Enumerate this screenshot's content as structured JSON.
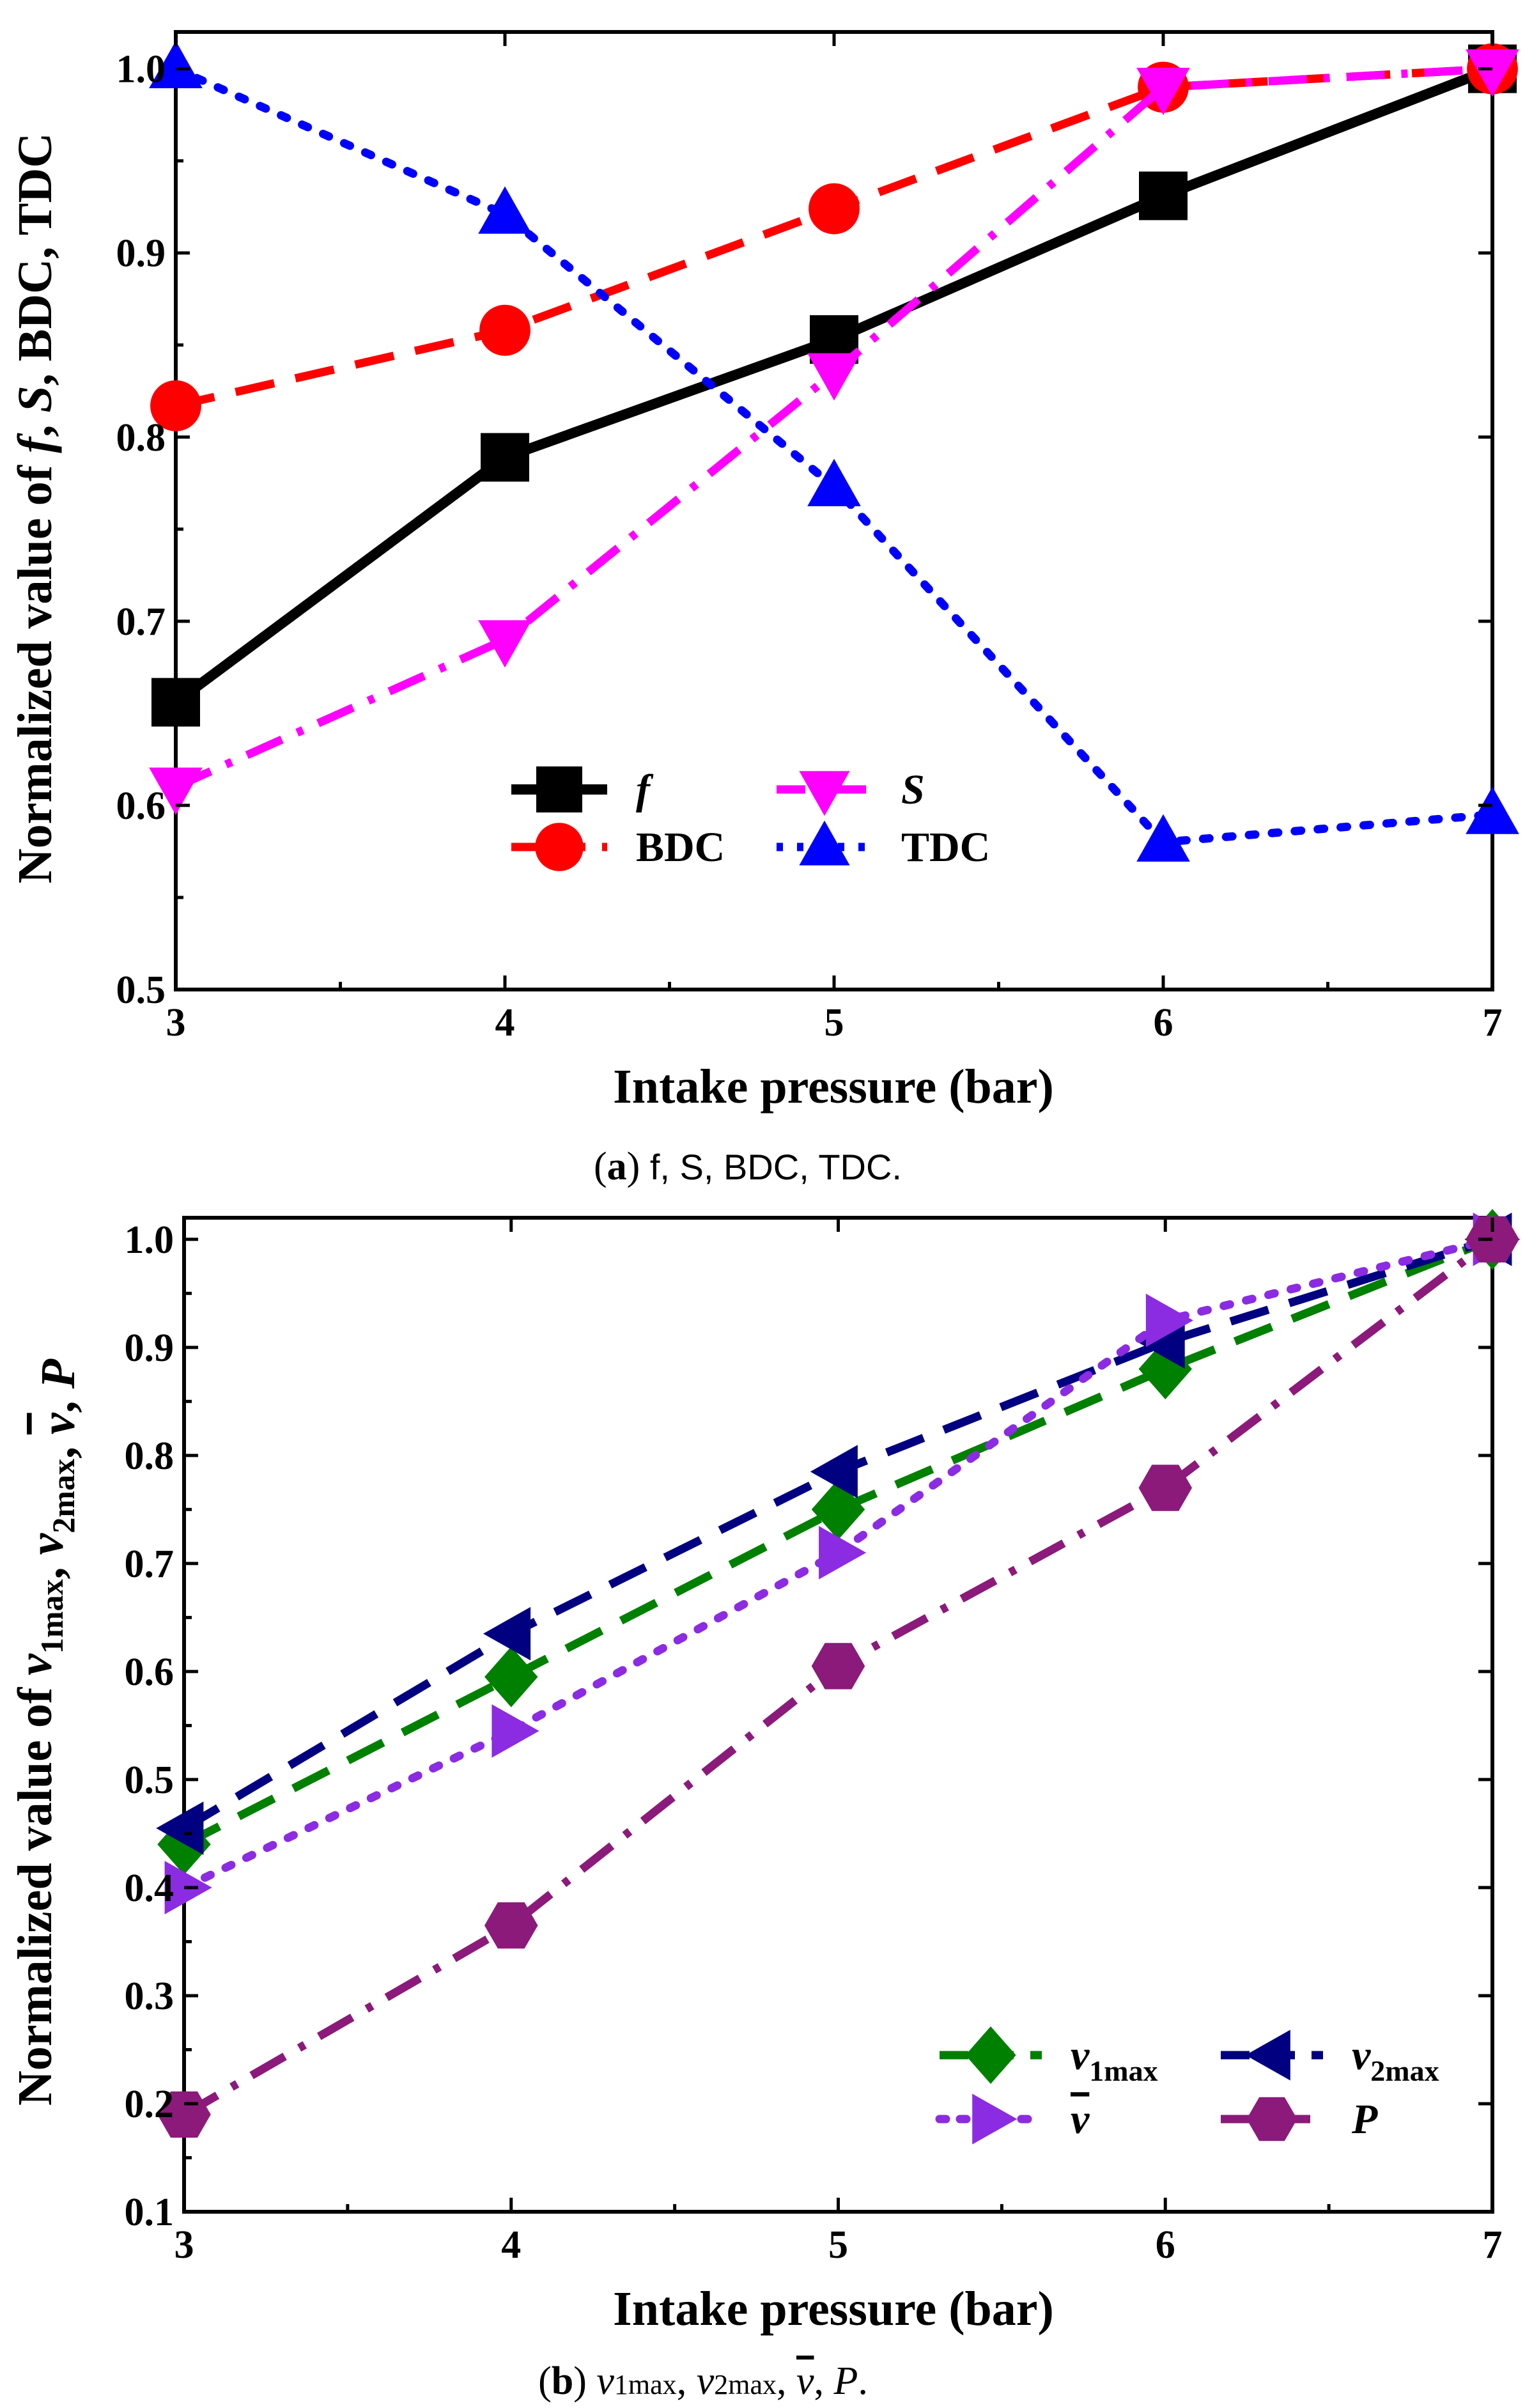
{
  "chart_data": [
    {
      "type": "line",
      "panel": "a",
      "caption": {
        "label": "a",
        "text": "f, S, BDC, TDC."
      },
      "xlabel": "Intake pressure (bar)",
      "ylabel": {
        "prefix": "Normalized value of ",
        "parts": [
          "f",
          ", ",
          "S",
          ", BDC, TDC"
        ]
      },
      "x": [
        3,
        4,
        5,
        6,
        7
      ],
      "xlim": [
        3,
        7
      ],
      "ylim": [
        0.5,
        1.02
      ],
      "xticks": [
        3,
        4,
        5,
        6,
        7
      ],
      "xtick_labels": [
        "3",
        "4",
        "5",
        "6",
        "7"
      ],
      "yticks": [
        0.5,
        0.6,
        0.7,
        0.8,
        0.9,
        1.0
      ],
      "ytick_labels": [
        "0.5",
        "0.6",
        "0.7",
        "0.8",
        "0.9",
        "1.0"
      ],
      "legend_position": "bottom-center",
      "series": [
        {
          "name": "f",
          "italic": true,
          "values": [
            0.656,
            0.789,
            0.853,
            0.931,
            1.0
          ],
          "color": "#000000",
          "marker": "square",
          "line": "solid"
        },
        {
          "name": "BDC",
          "italic": false,
          "values": [
            0.817,
            0.858,
            0.924,
            0.99,
            1.0
          ],
          "color": "#ff0000",
          "marker": "circle",
          "line": "dash"
        },
        {
          "name": "S",
          "italic": true,
          "values": [
            0.61,
            0.69,
            0.835,
            0.99,
            1.0
          ],
          "color": "#ff00ff",
          "marker": "triangle-down",
          "line": "dashdot"
        },
        {
          "name": "TDC",
          "italic": false,
          "values": [
            1.0,
            0.921,
            0.773,
            0.58,
            0.595
          ],
          "color": "#0000ff",
          "marker": "triangle-up",
          "line": "dot"
        }
      ]
    },
    {
      "type": "line",
      "panel": "b",
      "caption": {
        "label": "b",
        "text": "v1max, v2max, v, P."
      },
      "xlabel": "Intake pressure (bar)",
      "ylabel": {
        "prefix": "Normalized value of ",
        "parts": [
          "v1max",
          ", ",
          "v2max",
          ", ",
          "v",
          ", ",
          "P"
        ]
      },
      "x": [
        3,
        4,
        5,
        6,
        7
      ],
      "xlim": [
        3,
        7
      ],
      "ylim": [
        0.1,
        1.02
      ],
      "xticks": [
        3,
        4,
        5,
        6,
        7
      ],
      "xtick_labels": [
        "3",
        "4",
        "5",
        "6",
        "7"
      ],
      "yticks": [
        0.1,
        0.2,
        0.3,
        0.4,
        0.5,
        0.6,
        0.7,
        0.8,
        0.9,
        1.0
      ],
      "ytick_labels": [
        "0.1",
        "0.2",
        "0.3",
        "0.4",
        "0.5",
        "0.6",
        "0.7",
        "0.8",
        "0.9",
        "1.0"
      ],
      "legend_position": "bottom-right",
      "series": [
        {
          "name": "v1max",
          "symbol": "v",
          "sub": "1max",
          "values": [
            0.44,
            0.595,
            0.75,
            0.88,
            1.0
          ],
          "color": "#008000",
          "marker": "diamond",
          "line": "dash"
        },
        {
          "name": "v2max",
          "symbol": "v",
          "sub": "2max",
          "values": [
            0.455,
            0.635,
            0.785,
            0.905,
            1.0
          ],
          "color": "#000080",
          "marker": "triangle-left",
          "line": "dash"
        },
        {
          "name": "v",
          "symbol": "v",
          "overline": true,
          "values": [
            0.4,
            0.545,
            0.71,
            0.925,
            1.0
          ],
          "color": "#8b2be2",
          "marker": "triangle-right",
          "line": "dot"
        },
        {
          "name": "P",
          "symbol": "P",
          "values": [
            0.19,
            0.365,
            0.605,
            0.77,
            1.0
          ],
          "color": "#8b1a7a",
          "marker": "hexagon",
          "line": "dashdot"
        }
      ]
    }
  ]
}
